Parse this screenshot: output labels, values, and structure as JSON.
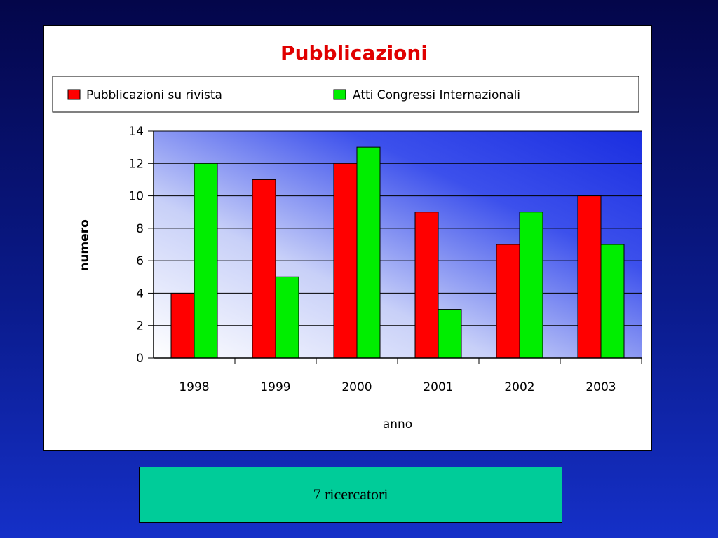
{
  "chart_data": {
    "type": "bar",
    "title": "Pubblicazioni",
    "xlabel": "anno",
    "ylabel": "numero",
    "categories": [
      "1998",
      "1999",
      "2000",
      "2001",
      "2002",
      "2003"
    ],
    "series": [
      {
        "name": "Pubblicazioni su rivista",
        "color": "#ff0000",
        "values": [
          4,
          11,
          12,
          9,
          7,
          10
        ]
      },
      {
        "name": "Atti Congressi Internazionali",
        "color": "#00ee00",
        "values": [
          12,
          5,
          13,
          3,
          9,
          7
        ]
      }
    ],
    "ylim": [
      0,
      14
    ],
    "yticks": [
      "0",
      "2",
      "4",
      "6",
      "8",
      "10",
      "12",
      "14"
    ],
    "grid": true,
    "legend": "top"
  },
  "footer": {
    "text": "7 ricercatori",
    "color": "#00cc99"
  }
}
